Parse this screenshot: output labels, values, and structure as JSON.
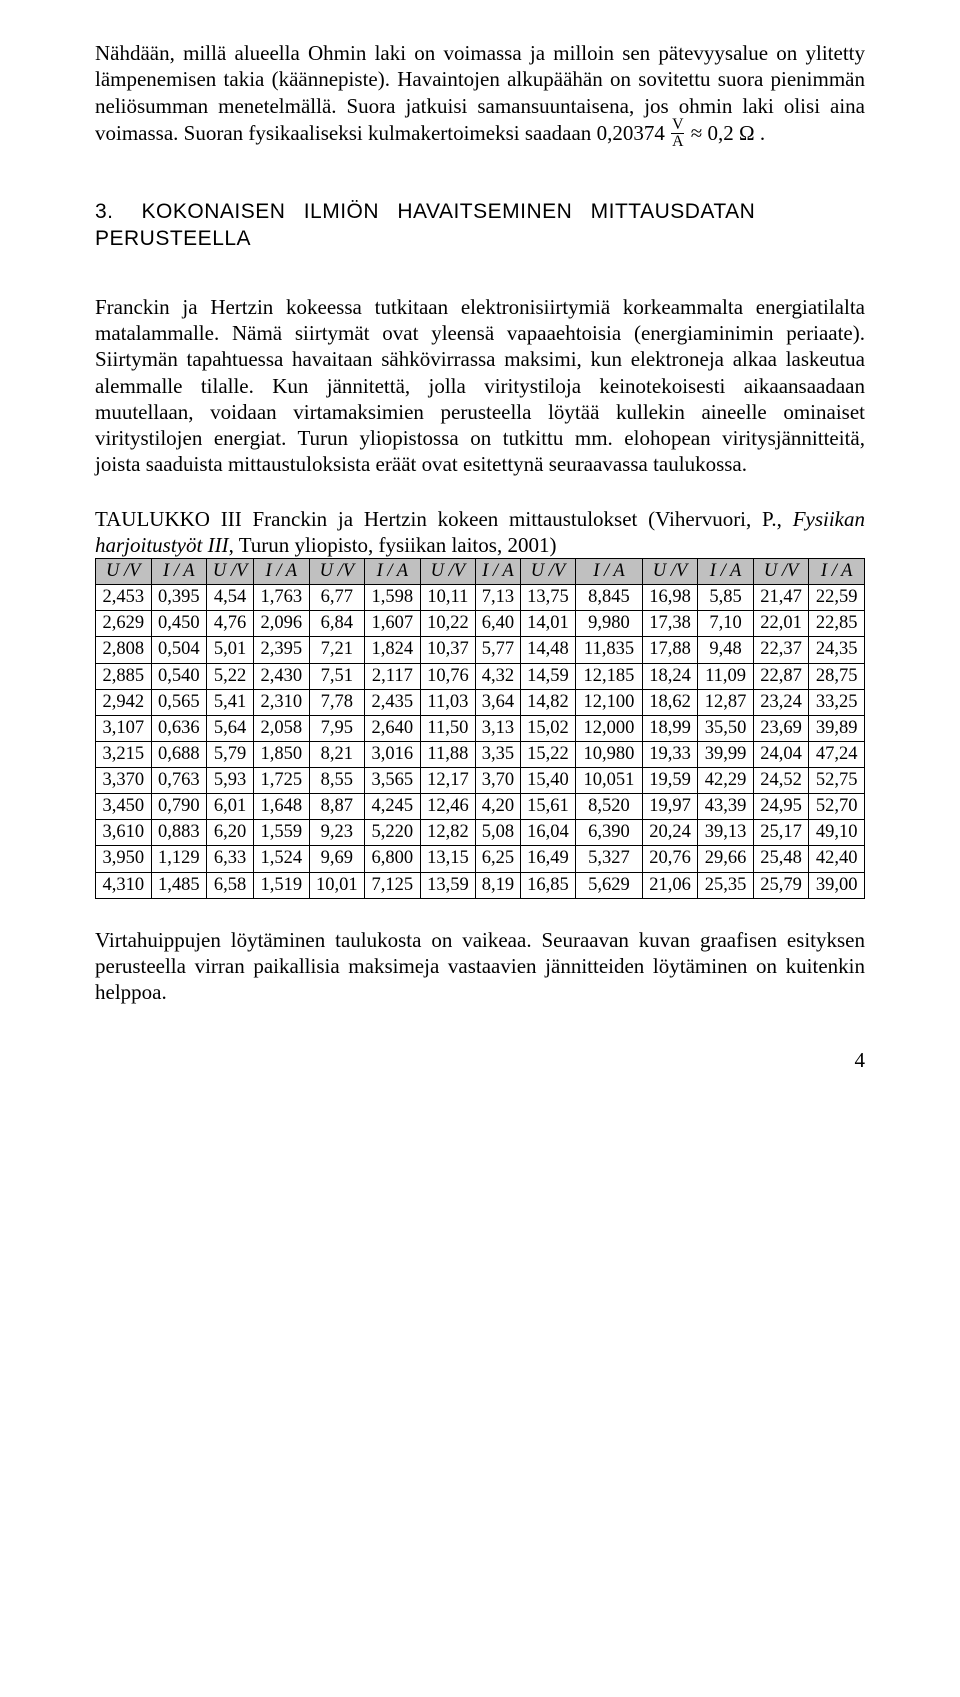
{
  "para1": "Nähdään, millä alueella Ohmin laki on voimassa ja milloin sen pätevyysalue on ylitetty lämpenemisen takia (käännepiste). Havaintojen alkupäähän on sovitettu suora pienimmän neliösumman menetelmällä. Suora jatkuisi samansuuntaisena, jos ohmin laki olisi aina voimassa. Suoran fysikaaliseksi kulmakertoimeksi saadaan ",
  "formula_value": "0,20374",
  "formula_approx": "0,2 Ω",
  "heading_num": "3.",
  "heading_rest_a": "KOKONAISEN ILMIÖN HAVAITSEMINEN MITTAUSDATAN",
  "heading_rest_b": "PERUSTEELLA",
  "para2": "Franckin ja Hertzin kokeessa tutkitaan elektronisiirtymiä korkeammalta energiatilalta matalammalle. Nämä siirtymät ovat yleensä vapaaehtoisia (energiaminimin periaate). Siirtymän tapahtuessa havaitaan sähkövirrassa maksimi, kun elektroneja alkaa laskeutua alemmalle tilalle. Kun jännitettä, jolla viritystiloja keinotekoisesti aikaansaadaan muutellaan, voidaan virtamaksimien perusteella löytää kullekin aineelle ominaiset viritystilojen energiat. Turun yliopistossa on tutkittu mm. elohopean viritysjännitteitä, joista saaduista mittaustuloksista eräät ovat esitettynä seuraavassa taulukossa.",
  "caption_pre": "TAULUKKO III Franckin ja Hertzin kokeen mittaustulokset (Vihervuori, P., ",
  "caption_it": "Fysiikan harjoitustyöt III",
  "caption_post": ", Turun yliopisto, fysiikan laitos, 2001)",
  "headers": [
    "U /V",
    "I / A",
    "U /V",
    "I / A",
    "U /V",
    "I / A",
    "U /V",
    "I / A",
    "U /V",
    "I / A",
    "U /V",
    "I / A",
    "U /V",
    "I / A"
  ],
  "table_border_color": "#000000",
  "table_header_bg": "#c0c0c0",
  "rows": [
    [
      "2,453",
      "0,395",
      "4,54",
      "1,763",
      "6,77",
      "1,598",
      "10,11",
      "7,13",
      "13,75",
      "8,845",
      "16,98",
      "5,85",
      "21,47",
      "22,59"
    ],
    [
      "2,629",
      "0,450",
      "4,76",
      "2,096",
      "6,84",
      "1,607",
      "10,22",
      "6,40",
      "14,01",
      "9,980",
      "17,38",
      "7,10",
      "22,01",
      "22,85"
    ],
    [
      "2,808",
      "0,504",
      "5,01",
      "2,395",
      "7,21",
      "1,824",
      "10,37",
      "5,77",
      "14,48",
      "11,835",
      "17,88",
      "9,48",
      "22,37",
      "24,35"
    ],
    [
      "2,885",
      "0,540",
      "5,22",
      "2,430",
      "7,51",
      "2,117",
      "10,76",
      "4,32",
      "14,59",
      "12,185",
      "18,24",
      "11,09",
      "22,87",
      "28,75"
    ],
    [
      "2,942",
      "0,565",
      "5,41",
      "2,310",
      "7,78",
      "2,435",
      "11,03",
      "3,64",
      "14,82",
      "12,100",
      "18,62",
      "12,87",
      "23,24",
      "33,25"
    ],
    [
      "3,107",
      "0,636",
      "5,64",
      "2,058",
      "7,95",
      "2,640",
      "11,50",
      "3,13",
      "15,02",
      "12,000",
      "18,99",
      "35,50",
      "23,69",
      "39,89"
    ],
    [
      "3,215",
      "0,688",
      "5,79",
      "1,850",
      "8,21",
      "3,016",
      "11,88",
      "3,35",
      "15,22",
      "10,980",
      "19,33",
      "39,99",
      "24,04",
      "47,24"
    ],
    [
      "3,370",
      "0,763",
      "5,93",
      "1,725",
      "8,55",
      "3,565",
      "12,17",
      "3,70",
      "15,40",
      "10,051",
      "19,59",
      "42,29",
      "24,52",
      "52,75"
    ],
    [
      "3,450",
      "0,790",
      "6,01",
      "1,648",
      "8,87",
      "4,245",
      "12,46",
      "4,20",
      "15,61",
      "8,520",
      "19,97",
      "43,39",
      "24,95",
      "52,70"
    ],
    [
      "3,610",
      "0,883",
      "6,20",
      "1,559",
      "9,23",
      "5,220",
      "12,82",
      "5,08",
      "16,04",
      "6,390",
      "20,24",
      "39,13",
      "25,17",
      "49,10"
    ],
    [
      "3,950",
      "1,129",
      "6,33",
      "1,524",
      "9,69",
      "6,800",
      "13,15",
      "6,25",
      "16,49",
      "5,327",
      "20,76",
      "29,66",
      "25,48",
      "42,40"
    ],
    [
      "4,310",
      "1,485",
      "6,58",
      "1,519",
      "10,01",
      "7,125",
      "13,59",
      "8,19",
      "16,85",
      "5,629",
      "21,06",
      "25,35",
      "25,79",
      "39,00"
    ]
  ],
  "para3": "Virtahuippujen löytäminen taulukosta on vaikeaa. Seuraavan kuvan graafisen esityksen perusteella virran paikallisia maksimeja vastaavien jännitteiden löytäminen on kuitenkin helppoa.",
  "page_number": "4"
}
